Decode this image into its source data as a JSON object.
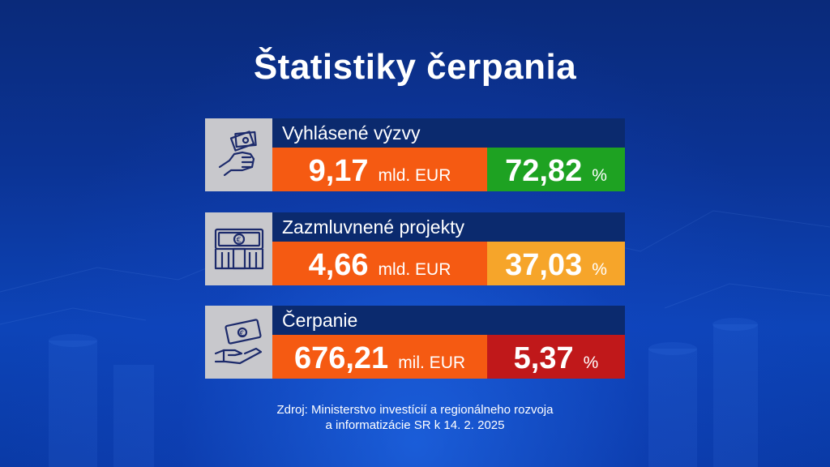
{
  "title": "Štatistiky čerpania",
  "cards": [
    {
      "label": "Vyhlásené výzvy",
      "amount": "9,17",
      "unit": "mld. EUR",
      "percent": "72,82",
      "percent_sign": "%",
      "percent_color": "#1ea222",
      "icon": "hand-money-icon"
    },
    {
      "label": "Zazmluvnené projekty",
      "amount": "4,66",
      "unit": "mld. EUR",
      "percent": "37,03",
      "percent_sign": "%",
      "percent_color": "#f6a52a",
      "icon": "euro-bundle-icon"
    },
    {
      "label": "Čerpanie",
      "amount": "676,21",
      "unit": "mil. EUR",
      "percent": "5,37",
      "percent_sign": "%",
      "percent_color": "#c0181a",
      "icon": "hand-euro-bill-icon"
    }
  ],
  "source": {
    "line1": "Zdroj: Ministerstvo investícií a regionálneho rozvoja",
    "line2": "a informatizácie SR k 14. 2. 2025"
  },
  "colors": {
    "amount_bg": "#f55a12",
    "label_bg": "#0b2a6e",
    "icon_bg": "#c8c8cc"
  }
}
